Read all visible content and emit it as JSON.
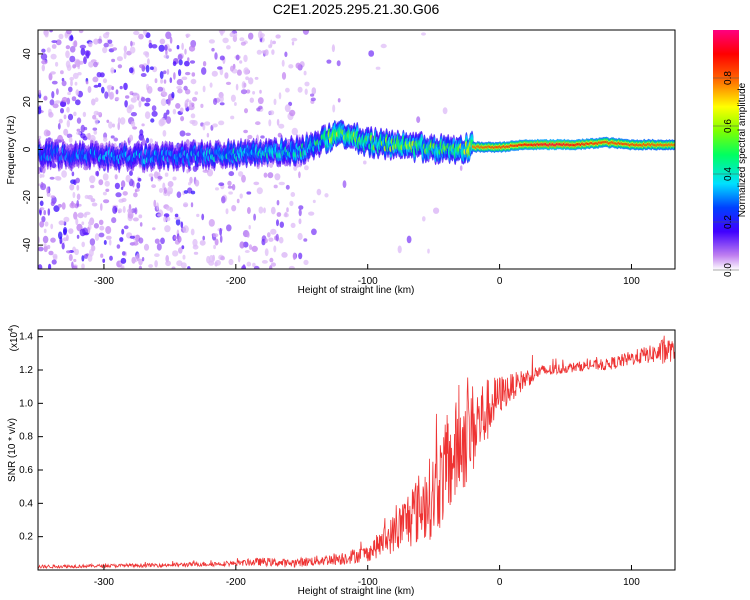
{
  "figure": {
    "title": "C2E1.2025.295.21.30.G06"
  },
  "chart_data": [
    {
      "type": "heatmap",
      "name": "spectrogram",
      "xlabel": "Height of straight line (km)",
      "ylabel": "Frequency (Hz)",
      "xlim": [
        -350,
        133
      ],
      "ylim": [
        -50,
        50
      ],
      "x_ticks": [
        -300,
        -200,
        -100,
        0,
        100
      ],
      "y_ticks": [
        -40,
        -20,
        0,
        20,
        40
      ],
      "colorbar": {
        "label": "Normalized spectral amplitude",
        "range": [
          0,
          1
        ],
        "ticks": [
          0.0,
          0.2,
          0.4,
          0.6,
          0.8
        ],
        "tick_labels": [
          "0.0",
          "0.2",
          "0.4",
          "0.6",
          "0.8"
        ],
        "colormap": "rainbow (white-violet-blue-cyan-green-yellow-red-magenta)"
      },
      "ridge": {
        "description": "frequency of the dominant spectral ridge vs height",
        "x": [
          -350,
          -300,
          -250,
          -200,
          -150,
          -135,
          -125,
          -110,
          -100,
          -80,
          -60,
          -40,
          -30,
          -20,
          0,
          20,
          40,
          60,
          80,
          100,
          133
        ],
        "y": [
          -2,
          -3,
          -3,
          -2,
          0,
          3,
          6,
          5,
          3,
          2,
          1,
          0,
          0,
          1,
          1,
          2,
          2,
          2,
          3,
          2,
          2
        ],
        "peak_amplitude": [
          0.3,
          0.35,
          0.35,
          0.4,
          0.45,
          0.5,
          0.7,
          0.6,
          0.55,
          0.6,
          0.6,
          0.55,
          0.6,
          0.8,
          0.85,
          0.9,
          0.95,
          0.9,
          0.85,
          0.85,
          0.8
        ]
      }
    },
    {
      "type": "line",
      "name": "snr",
      "xlabel": "Height of straight line (km)",
      "ylabel": "SNR (10 * v/v)",
      "y_scale_label": "(x10",
      "y_scale_exp": "4",
      "y_scale_close": ")",
      "xlim": [
        -350,
        133
      ],
      "ylim": [
        0,
        14400
      ],
      "x_ticks": [
        -300,
        -200,
        -100,
        0,
        100
      ],
      "y_ticks": [
        2000,
        4000,
        6000,
        8000,
        10000,
        12000,
        14000
      ],
      "y_tick_labels": [
        "0.2",
        "0.4",
        "0.6",
        "0.8",
        "1.0",
        "1.2",
        "1.4"
      ],
      "color": "#ee3333",
      "series": [
        {
          "name": "SNR",
          "x": [
            -350,
            -300,
            -250,
            -200,
            -180,
            -160,
            -140,
            -120,
            -100,
            -90,
            -80,
            -70,
            -60,
            -50,
            -40,
            -30,
            -20,
            -10,
            0,
            10,
            20,
            30,
            40,
            50,
            60,
            70,
            80,
            90,
            100,
            110,
            120,
            125,
            130,
            133
          ],
          "y": [
            200,
            250,
            300,
            400,
            500,
            400,
            550,
            700,
            1000,
            1600,
            2200,
            3000,
            3800,
            4500,
            6000,
            7500,
            8500,
            9500,
            10500,
            11000,
            11500,
            11900,
            12000,
            12100,
            12200,
            12300,
            12300,
            12500,
            12700,
            12900,
            13000,
            13100,
            13200,
            13000
          ],
          "noise": [
            100,
            100,
            120,
            150,
            250,
            250,
            300,
            400,
            500,
            800,
            1200,
            1800,
            2200,
            2600,
            3000,
            3200,
            2800,
            2000,
            1200,
            800,
            600,
            400,
            350,
            300,
            300,
            300,
            350,
            400,
            450,
            500,
            600,
            900,
            700,
            400
          ]
        }
      ]
    }
  ]
}
